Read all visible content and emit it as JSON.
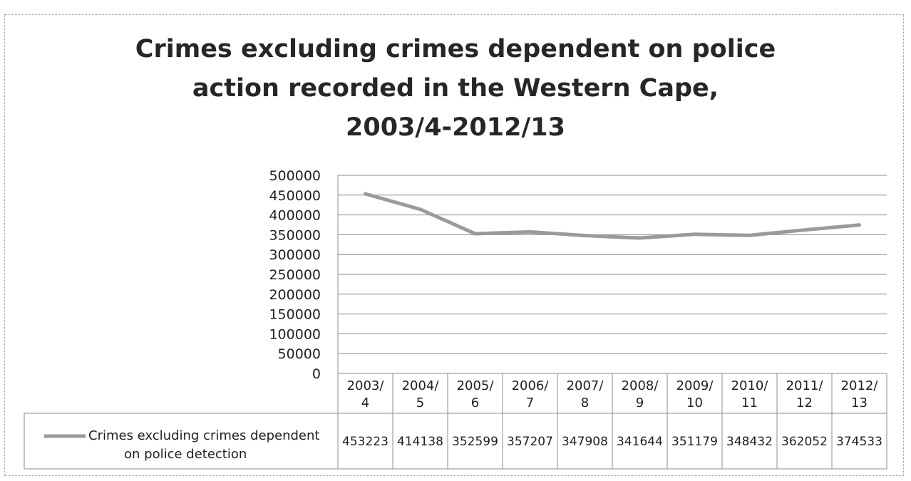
{
  "chart_data": {
    "type": "line",
    "title": "Crimes excluding crimes dependent on police action recorded in the Western Cape, 2003/4-2012/13",
    "title_lines": [
      "Crimes excluding crimes dependent on police",
      "action recorded in the Western Cape,",
      "2003/4-2012/13"
    ],
    "xlabel": "",
    "ylabel": "",
    "categories": [
      "2003/4",
      "2004/5",
      "2005/6",
      "2006/7",
      "2007/8",
      "2008/9",
      "2009/10",
      "2010/11",
      "2011/12",
      "2012/13"
    ],
    "category_lines": [
      [
        "2003/",
        "4"
      ],
      [
        "2004/",
        "5"
      ],
      [
        "2005/",
        "6"
      ],
      [
        "2006/",
        "7"
      ],
      [
        "2007/",
        "8"
      ],
      [
        "2008/",
        "9"
      ],
      [
        "2009/",
        "10"
      ],
      [
        "2010/",
        "11"
      ],
      [
        "2011/",
        "12"
      ],
      [
        "2012/",
        "13"
      ]
    ],
    "series": [
      {
        "name": "Crimes excluding crimes dependent on police detection",
        "legend_lines": [
          "Crimes excluding crimes dependent",
          "on police detection"
        ],
        "values": [
          453223,
          414138,
          352599,
          357207,
          347908,
          341644,
          351179,
          348432,
          362052,
          374533
        ],
        "color": "#9a9a9a"
      }
    ],
    "ylim": [
      0,
      500000
    ],
    "yticks": [
      0,
      50000,
      100000,
      150000,
      200000,
      250000,
      300000,
      350000,
      400000,
      450000,
      500000
    ],
    "grid": true,
    "legend_placement": "data-table-left",
    "data_table": true
  }
}
